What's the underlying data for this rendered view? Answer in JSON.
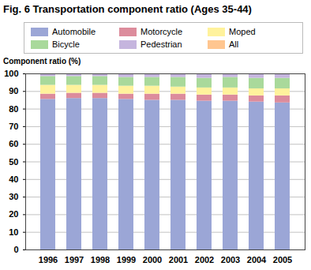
{
  "chart_data": {
    "type": "bar",
    "stacked": true,
    "title": "Fig. 6  Transportation component ratio (Ages 35-44)",
    "y_label": "Component ratio (%)",
    "categories": [
      "1996",
      "1997",
      "1998",
      "1999",
      "2000",
      "2001",
      "2002",
      "2003",
      "2004",
      "2005"
    ],
    "series": [
      {
        "name": "Automobile",
        "color": "#9ba6d6",
        "values": [
          85.5,
          86,
          86,
          85.5,
          85,
          85,
          84.5,
          84.5,
          84,
          83.5
        ]
      },
      {
        "name": "Motorcycle",
        "color": "#dc8c9c",
        "values": [
          3,
          3,
          3,
          3,
          3.5,
          3.5,
          3.5,
          3.5,
          3.5,
          4
        ]
      },
      {
        "name": "Moped",
        "color": "#fff29c",
        "values": [
          5,
          4.5,
          4.5,
          4.5,
          4.5,
          4,
          4,
          4,
          4,
          4
        ]
      },
      {
        "name": "Bicycle",
        "color": "#a9d99b",
        "values": [
          5,
          5,
          5,
          5,
          5,
          5.5,
          5.5,
          6,
          6,
          6
        ]
      },
      {
        "name": "Pedestrian",
        "color": "#c5b5de",
        "values": [
          1.5,
          1.5,
          1.5,
          2,
          2,
          2,
          2.5,
          2,
          2.5,
          2.5
        ]
      },
      {
        "name": "All",
        "color": "#ffc690",
        "values": [
          0,
          0,
          0,
          0,
          0,
          0,
          0,
          0,
          0,
          0
        ]
      }
    ],
    "ylim": [
      0,
      100
    ],
    "yticks": [
      0,
      10,
      20,
      30,
      40,
      50,
      60,
      70,
      80,
      90,
      100
    ],
    "grid": true,
    "legend": "top"
  }
}
